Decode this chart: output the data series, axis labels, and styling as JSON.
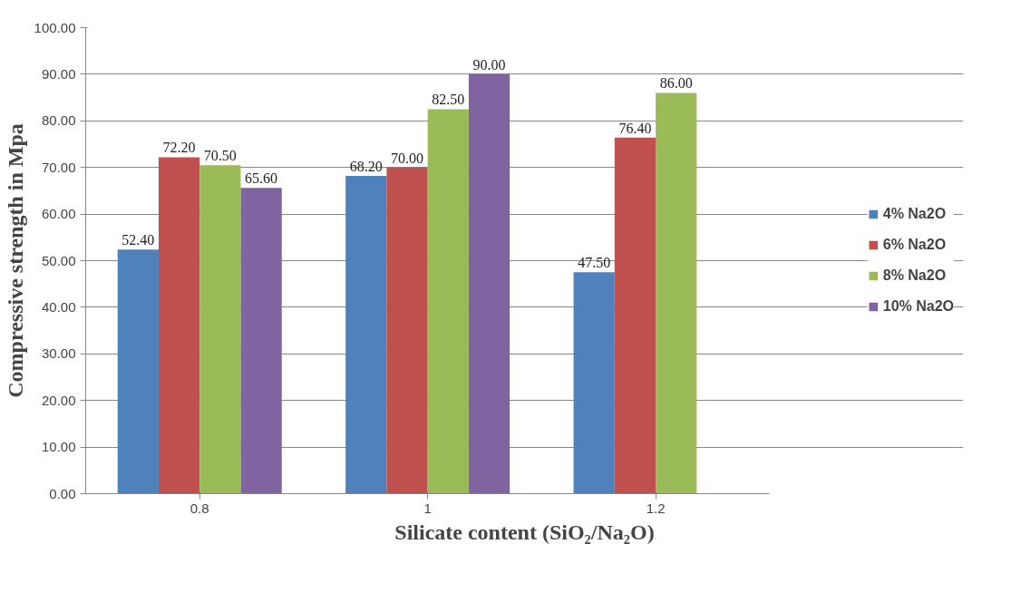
{
  "chart_data": {
    "type": "bar",
    "xlabel": "Silicate content (SiO₂/Na₂O)",
    "ylabel": "Compressive strength in Mpa",
    "categories": [
      "0.8",
      "1",
      "1.2"
    ],
    "series": [
      {
        "name": "4% Na2O",
        "color": "#4f81bd",
        "values": [
          52.4,
          68.2,
          47.5
        ],
        "value_labels": [
          "52.40",
          "68.20",
          "47.50"
        ]
      },
      {
        "name": "6% Na2O",
        "color": "#c0504d",
        "values": [
          72.2,
          70.0,
          76.4
        ],
        "value_labels": [
          "72.20",
          "70.00",
          "76.40"
        ]
      },
      {
        "name": "8% Na2O",
        "color": "#9bbb59",
        "values": [
          70.5,
          82.5,
          86.0
        ],
        "value_labels": [
          "70.50",
          "82.50",
          "86.00"
        ]
      },
      {
        "name": "10% Na2O",
        "color": "#8064a2",
        "values": [
          65.6,
          90.0,
          null
        ],
        "value_labels": [
          "65.60",
          "90.00",
          null
        ]
      }
    ],
    "ylim": [
      0,
      100
    ],
    "yticks": [
      {
        "value": 0,
        "label": "0.00"
      },
      {
        "value": 10,
        "label": "10.00"
      },
      {
        "value": 20,
        "label": "20.00"
      },
      {
        "value": 30,
        "label": "30.00"
      },
      {
        "value": 40,
        "label": "40.00"
      },
      {
        "value": 50,
        "label": "50.00"
      },
      {
        "value": 60,
        "label": "60.00"
      },
      {
        "value": 70,
        "label": "70.00"
      },
      {
        "value": 80,
        "label": "80.00"
      },
      {
        "value": 90,
        "label": "90.00"
      },
      {
        "value": 100,
        "label": "100.00"
      }
    ],
    "grid": "y",
    "legend": "right"
  }
}
